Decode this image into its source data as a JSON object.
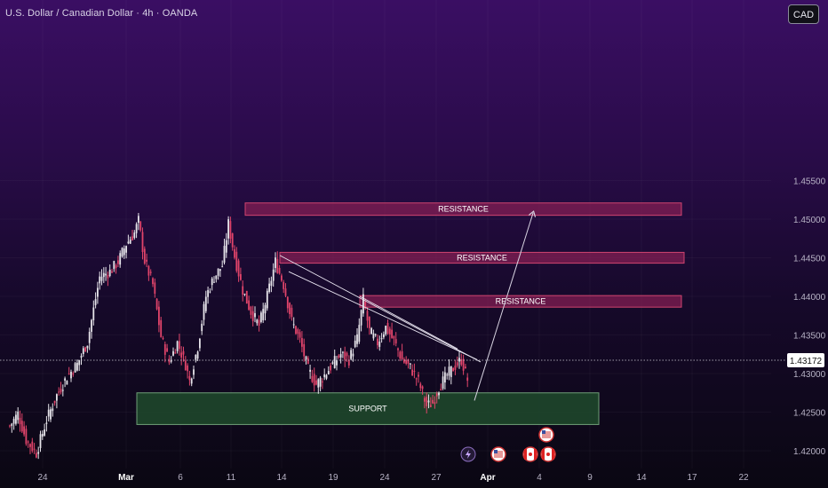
{
  "header": {
    "title": "U.S. Dollar / Canadian Dollar · 4h · OANDA",
    "currency": "CAD"
  },
  "colors": {
    "up": "#e6e4ea",
    "down": "#e0446a",
    "resistance_fill": "#8a1f55",
    "resistance_border": "#d0446f",
    "support_fill": "#1f4a2c",
    "support_border": "#6f9e78",
    "price_tag_bg": "#ffffff"
  },
  "chart_data": {
    "type": "candlestick",
    "title": "U.S. Dollar / Canadian Dollar · 4h · OANDA",
    "y_axis": {
      "ticks": [
        1.455,
        1.45,
        1.445,
        1.44,
        1.435,
        1.43,
        1.425,
        1.42
      ],
      "tick_labels": [
        "1.45500",
        "1.45000",
        "1.44500",
        "1.44000",
        "1.43500",
        "1.43000",
        "1.42500",
        "1.42000"
      ],
      "range": [
        1.4194,
        1.4587
      ]
    },
    "x_axis": {
      "tick_labels": [
        "24",
        "Mar",
        "6",
        "11",
        "14",
        "19",
        "24",
        "27",
        "Apr",
        "4",
        "9",
        "14",
        "17",
        "22"
      ],
      "bold_labels": [
        "Mar",
        "Apr"
      ]
    },
    "current_price": 1.43172,
    "current_price_label": "1.43172",
    "zones": [
      {
        "type": "resistance",
        "label": "RESISTANCE",
        "top": 1.4521,
        "bottom": 1.4505
      },
      {
        "type": "resistance",
        "label": "RESISTANCE",
        "top": 1.4457,
        "bottom": 1.4443
      },
      {
        "type": "resistance",
        "label": "RESISTANCE",
        "top": 1.4401,
        "bottom": 1.4386
      },
      {
        "type": "support",
        "label": "SUPPORT",
        "top": 1.4275,
        "bottom": 1.4234
      }
    ],
    "trendlines": [
      {
        "from": [
          1.4453
        ],
        "to": [
          1.4315
        ]
      },
      {
        "from": [
          1.4432
        ],
        "to": [
          1.4318
        ]
      },
      {
        "from": [
          1.44
        ],
        "to": [
          1.4332
        ]
      }
    ],
    "projection": {
      "from": 1.4265,
      "to": 1.4508
    },
    "price_keypoints": [
      [
        0,
        1.4232
      ],
      [
        4,
        1.4248
      ],
      [
        8,
        1.4214
      ],
      [
        13,
        1.4197
      ],
      [
        18,
        1.424
      ],
      [
        23,
        1.4272
      ],
      [
        28,
        1.4296
      ],
      [
        33,
        1.4312
      ],
      [
        38,
        1.4341
      ],
      [
        44,
        1.4425
      ],
      [
        49,
        1.4432
      ],
      [
        53,
        1.4445
      ],
      [
        57,
        1.4468
      ],
      [
        61,
        1.4482
      ],
      [
        63,
        1.4498
      ],
      [
        66,
        1.4446
      ],
      [
        70,
        1.4415
      ],
      [
        74,
        1.4348
      ],
      [
        78,
        1.4315
      ],
      [
        82,
        1.434
      ],
      [
        86,
        1.4312
      ],
      [
        88,
        1.429
      ],
      [
        92,
        1.4335
      ],
      [
        96,
        1.44
      ],
      [
        100,
        1.4425
      ],
      [
        104,
        1.444
      ],
      [
        107,
        1.4494
      ],
      [
        110,
        1.4452
      ],
      [
        114,
        1.4408
      ],
      [
        118,
        1.438
      ],
      [
        122,
        1.4362
      ],
      [
        126,
        1.44
      ],
      [
        130,
        1.4445
      ],
      [
        134,
        1.4415
      ],
      [
        138,
        1.4368
      ],
      [
        142,
        1.4343
      ],
      [
        146,
        1.4305
      ],
      [
        150,
        1.4286
      ],
      [
        154,
        1.4298
      ],
      [
        158,
        1.4312
      ],
      [
        162,
        1.4325
      ],
      [
        166,
        1.4318
      ],
      [
        170,
        1.4345
      ],
      [
        173,
        1.4396
      ],
      [
        176,
        1.4355
      ],
      [
        180,
        1.434
      ],
      [
        184,
        1.436
      ],
      [
        188,
        1.4342
      ],
      [
        192,
        1.4318
      ],
      [
        196,
        1.4308
      ],
      [
        200,
        1.429
      ],
      [
        204,
        1.4258
      ],
      [
        207,
        1.4262
      ],
      [
        210,
        1.4282
      ],
      [
        214,
        1.4298
      ],
      [
        218,
        1.431
      ],
      [
        221,
        1.4318
      ],
      [
        224,
        1.4292
      ]
    ]
  },
  "bottom_icons": [
    "lightning-icon",
    "us-flag-icon",
    "canada-flag-icon",
    "canada-flag-icon",
    "us-flag-icon"
  ]
}
